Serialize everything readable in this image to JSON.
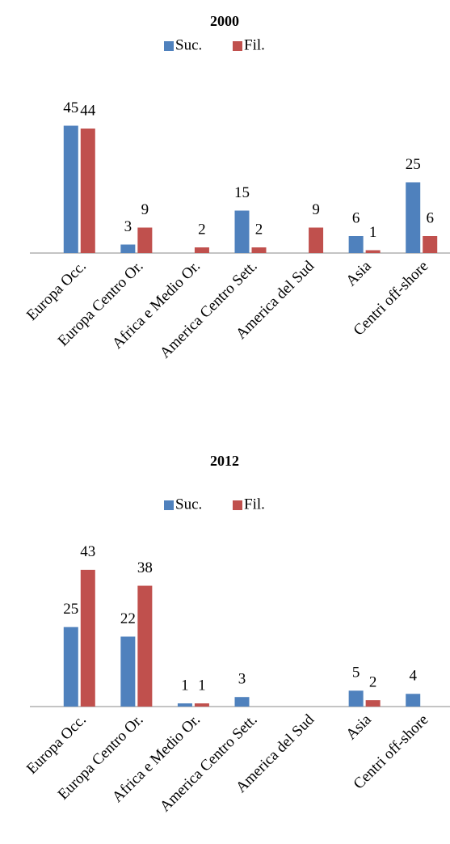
{
  "chart_data": [
    {
      "type": "bar",
      "title": "2000",
      "categories": [
        "Europa Occ.",
        "Europa Centro Or.",
        "Africa e Medio Or.",
        "America Centro Sett.",
        "America del Sud",
        "Asia",
        "Centri off-shore"
      ],
      "series": [
        {
          "name": "Suc.",
          "color": "#4f81bd",
          "values": [
            45,
            3,
            null,
            15,
            null,
            6,
            25
          ]
        },
        {
          "name": "Fil.",
          "color": "#c0504d",
          "values": [
            44,
            9,
            2,
            2,
            9,
            1,
            6
          ]
        }
      ],
      "ylim": [
        0,
        50
      ],
      "legend": "top"
    },
    {
      "type": "bar",
      "title": "2012",
      "categories": [
        "Europa Occ.",
        "Europa Centro Or.",
        "Africa e Medio Or.",
        "America Centro Sett.",
        "America del Sud",
        "Asia",
        "Centri off-shore"
      ],
      "series": [
        {
          "name": "Suc.",
          "color": "#4f81bd",
          "values": [
            25,
            22,
            1,
            3,
            null,
            5,
            4
          ]
        },
        {
          "name": "Fil.",
          "color": "#c0504d",
          "values": [
            43,
            38,
            1,
            null,
            null,
            2,
            null
          ]
        }
      ],
      "ylim": [
        0,
        45
      ],
      "legend": "top"
    }
  ]
}
